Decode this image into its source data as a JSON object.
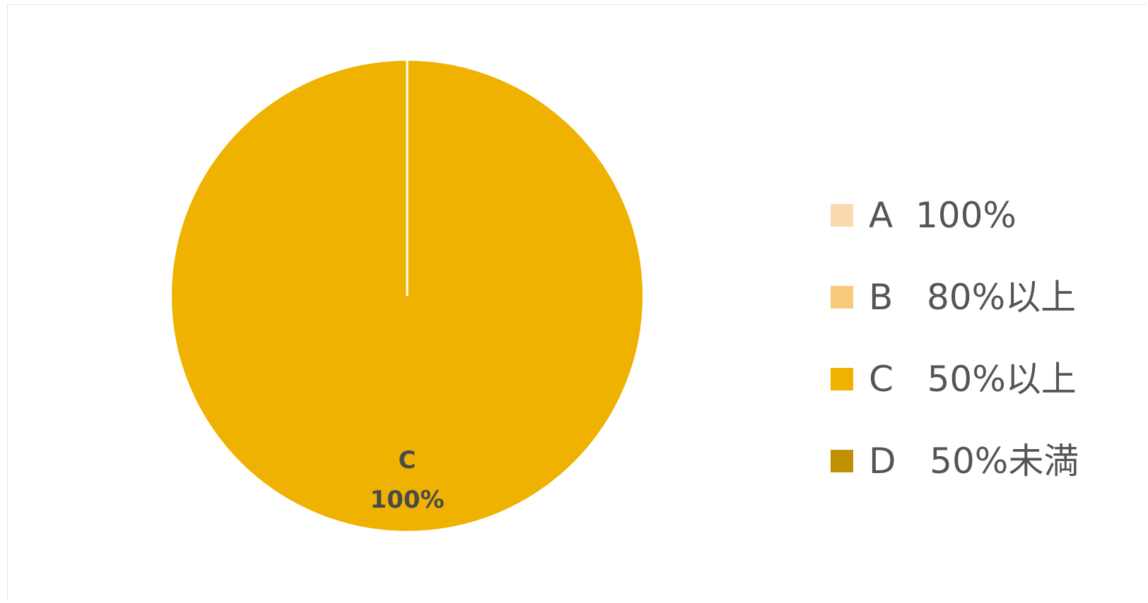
{
  "chart_data": {
    "type": "pie",
    "categories": [
      "A  100%",
      "B   80%以上",
      "C   50%以上",
      "D   50%未満"
    ],
    "values": [
      0,
      0,
      100,
      0
    ],
    "colors": [
      "#fad9b0",
      "#f9c97a",
      "#efb200",
      "#c19000"
    ],
    "data_labels": [
      {
        "category": "C",
        "value": "100%"
      }
    ],
    "legend_position": "right",
    "title": ""
  }
}
